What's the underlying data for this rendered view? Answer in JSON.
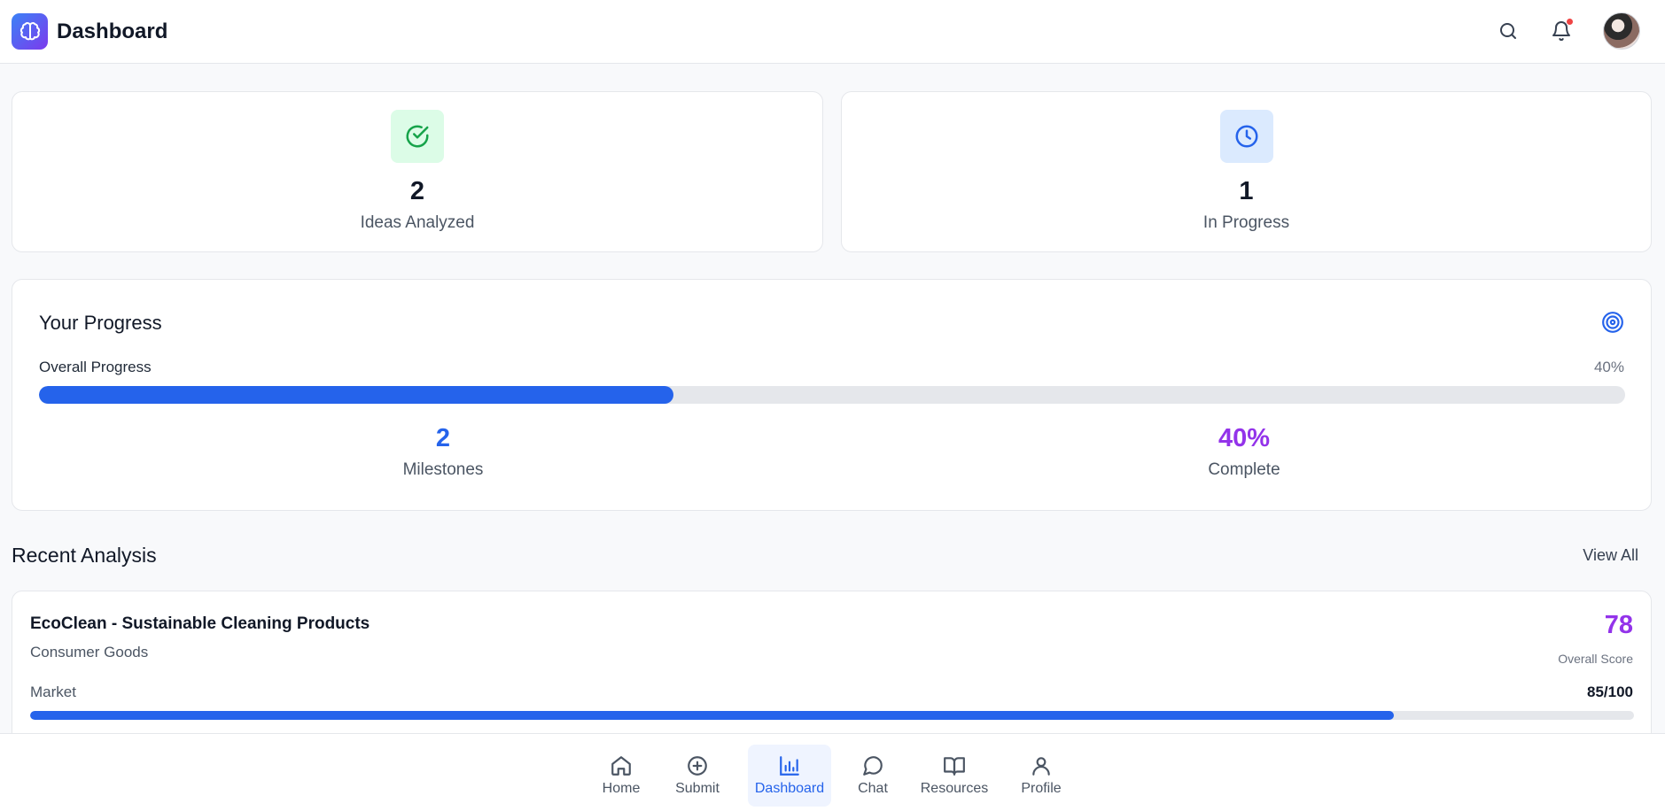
{
  "header": {
    "title": "Dashboard",
    "logo_icon": "brain-icon",
    "actions": [
      "search-icon",
      "bell-icon",
      "avatar"
    ],
    "notification_dot_color": "#ef4444"
  },
  "stats": [
    {
      "value": "2",
      "label": "Ideas Analyzed",
      "icon": "check-circle-icon",
      "icon_bg": "#dcfce7",
      "icon_color": "#16a34a"
    },
    {
      "value": "1",
      "label": "In Progress",
      "icon": "clock-icon",
      "icon_bg": "#dbeafe",
      "icon_color": "#2563eb"
    }
  ],
  "progress": {
    "title": "Your Progress",
    "icon": "target-icon",
    "overall_label": "Overall Progress",
    "overall_pct": "40%",
    "overall_fraction": 0.4,
    "milestones_value": "2",
    "milestones_label": "Milestones",
    "complete_value": "40%",
    "complete_label": "Complete"
  },
  "recent": {
    "title": "Recent Analysis",
    "view_all": "View All",
    "items": [
      {
        "title": "EcoClean - Sustainable Cleaning Products",
        "category": "Consumer Goods",
        "score": "78",
        "score_label": "Overall Score",
        "metric_label": "Market",
        "metric_value": "85/100",
        "metric_fraction": 0.85
      }
    ]
  },
  "nav": {
    "items": [
      {
        "label": "Home",
        "icon": "home-icon",
        "active": false
      },
      {
        "label": "Submit",
        "icon": "plus-circle-icon",
        "active": false
      },
      {
        "label": "Dashboard",
        "icon": "bar-chart-icon",
        "active": true
      },
      {
        "label": "Chat",
        "icon": "chat-bubble-icon",
        "active": false
      },
      {
        "label": "Resources",
        "icon": "book-open-icon",
        "active": false
      },
      {
        "label": "Profile",
        "icon": "user-icon",
        "active": false
      }
    ]
  },
  "colors": {
    "accent_blue": "#2563eb",
    "accent_purple": "#9333ea",
    "track": "#e5e7eb"
  }
}
